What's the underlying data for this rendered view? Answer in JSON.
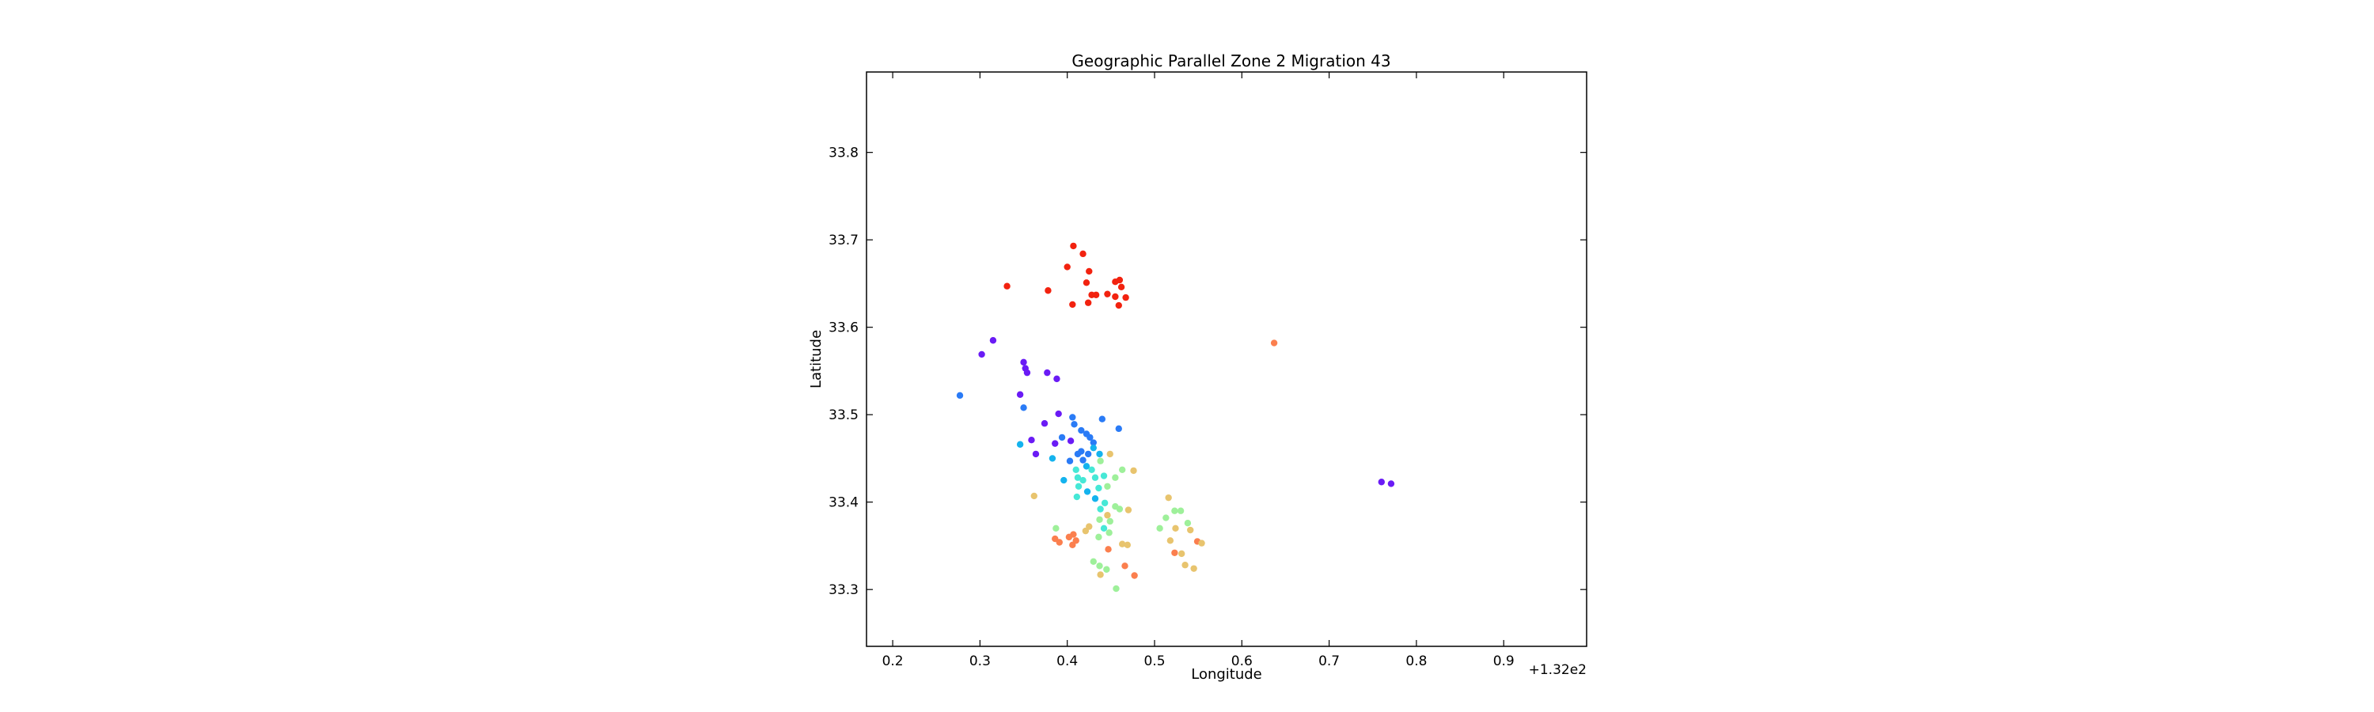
{
  "chart_data": {
    "type": "scatter",
    "title": "Geographic Parallel Zone 2 Migration 43",
    "xlabel": "Longitude",
    "ylabel": "Latitude",
    "x_offset_label": "+1.32e2",
    "xlim": [
      0.17,
      0.995
    ],
    "ylim": [
      33.235,
      33.892
    ],
    "x_ticks": [
      0.2,
      0.3,
      0.4,
      0.5,
      0.6,
      0.7,
      0.8,
      0.9
    ],
    "x_tick_labels": [
      "0.2",
      "0.3",
      "0.4",
      "0.5",
      "0.6",
      "0.7",
      "0.8",
      "0.9"
    ],
    "y_ticks": [
      33.3,
      33.4,
      33.5,
      33.6,
      33.7,
      33.8
    ],
    "y_tick_labels": [
      "33.3",
      "33.4",
      "33.5",
      "33.6",
      "33.7",
      "33.8"
    ],
    "grid": false,
    "legend": "none",
    "color_scale": "rainbow",
    "point_color_scheme": [
      {
        "name": "purple",
        "color": "#6a1bf5"
      },
      {
        "name": "blue",
        "color": "#2a7bf6"
      },
      {
        "name": "sky",
        "color": "#14b3ee"
      },
      {
        "name": "cyan",
        "color": "#46e8d6"
      },
      {
        "name": "green",
        "color": "#9ef09a"
      },
      {
        "name": "yellow",
        "color": "#e8c46e"
      },
      {
        "name": "orange",
        "color": "#fb7f4e"
      },
      {
        "name": "red",
        "color": "#f2220f"
      }
    ],
    "points": [
      {
        "x": 0.407,
        "y": 33.693,
        "c": "red"
      },
      {
        "x": 0.418,
        "y": 33.684,
        "c": "red"
      },
      {
        "x": 0.425,
        "y": 33.664,
        "c": "red"
      },
      {
        "x": 0.4,
        "y": 33.669,
        "c": "red"
      },
      {
        "x": 0.455,
        "y": 33.652,
        "c": "red"
      },
      {
        "x": 0.46,
        "y": 33.654,
        "c": "red"
      },
      {
        "x": 0.462,
        "y": 33.646,
        "c": "red"
      },
      {
        "x": 0.422,
        "y": 33.651,
        "c": "red"
      },
      {
        "x": 0.331,
        "y": 33.647,
        "c": "red"
      },
      {
        "x": 0.378,
        "y": 33.642,
        "c": "red"
      },
      {
        "x": 0.428,
        "y": 33.637,
        "c": "red"
      },
      {
        "x": 0.433,
        "y": 33.637,
        "c": "red"
      },
      {
        "x": 0.446,
        "y": 33.638,
        "c": "red"
      },
      {
        "x": 0.455,
        "y": 33.635,
        "c": "red"
      },
      {
        "x": 0.467,
        "y": 33.634,
        "c": "red"
      },
      {
        "x": 0.406,
        "y": 33.626,
        "c": "red"
      },
      {
        "x": 0.424,
        "y": 33.628,
        "c": "red"
      },
      {
        "x": 0.459,
        "y": 33.625,
        "c": "red"
      },
      {
        "x": 0.637,
        "y": 33.582,
        "c": "orange"
      },
      {
        "x": 0.315,
        "y": 33.585,
        "c": "purple"
      },
      {
        "x": 0.302,
        "y": 33.569,
        "c": "purple"
      },
      {
        "x": 0.35,
        "y": 33.56,
        "c": "purple"
      },
      {
        "x": 0.352,
        "y": 33.553,
        "c": "purple"
      },
      {
        "x": 0.354,
        "y": 33.548,
        "c": "purple"
      },
      {
        "x": 0.377,
        "y": 33.548,
        "c": "purple"
      },
      {
        "x": 0.388,
        "y": 33.541,
        "c": "purple"
      },
      {
        "x": 0.346,
        "y": 33.523,
        "c": "purple"
      },
      {
        "x": 0.277,
        "y": 33.522,
        "c": "blue"
      },
      {
        "x": 0.35,
        "y": 33.508,
        "c": "blue"
      },
      {
        "x": 0.39,
        "y": 33.501,
        "c": "purple"
      },
      {
        "x": 0.406,
        "y": 33.497,
        "c": "blue"
      },
      {
        "x": 0.408,
        "y": 33.489,
        "c": "blue"
      },
      {
        "x": 0.44,
        "y": 33.495,
        "c": "blue"
      },
      {
        "x": 0.374,
        "y": 33.49,
        "c": "purple"
      },
      {
        "x": 0.416,
        "y": 33.482,
        "c": "blue"
      },
      {
        "x": 0.459,
        "y": 33.484,
        "c": "blue"
      },
      {
        "x": 0.422,
        "y": 33.478,
        "c": "blue"
      },
      {
        "x": 0.426,
        "y": 33.474,
        "c": "blue"
      },
      {
        "x": 0.394,
        "y": 33.474,
        "c": "blue"
      },
      {
        "x": 0.404,
        "y": 33.47,
        "c": "purple"
      },
      {
        "x": 0.359,
        "y": 33.471,
        "c": "purple"
      },
      {
        "x": 0.346,
        "y": 33.466,
        "c": "sky"
      },
      {
        "x": 0.386,
        "y": 33.467,
        "c": "purple"
      },
      {
        "x": 0.43,
        "y": 33.468,
        "c": "blue"
      },
      {
        "x": 0.43,
        "y": 33.462,
        "c": "sky"
      },
      {
        "x": 0.416,
        "y": 33.458,
        "c": "blue"
      },
      {
        "x": 0.364,
        "y": 33.455,
        "c": "purple"
      },
      {
        "x": 0.412,
        "y": 33.455,
        "c": "blue"
      },
      {
        "x": 0.424,
        "y": 33.455,
        "c": "blue"
      },
      {
        "x": 0.437,
        "y": 33.455,
        "c": "sky"
      },
      {
        "x": 0.449,
        "y": 33.455,
        "c": "yellow"
      },
      {
        "x": 0.383,
        "y": 33.45,
        "c": "sky"
      },
      {
        "x": 0.403,
        "y": 33.447,
        "c": "blue"
      },
      {
        "x": 0.418,
        "y": 33.448,
        "c": "blue"
      },
      {
        "x": 0.438,
        "y": 33.447,
        "c": "green"
      },
      {
        "x": 0.422,
        "y": 33.441,
        "c": "sky"
      },
      {
        "x": 0.41,
        "y": 33.437,
        "c": "cyan"
      },
      {
        "x": 0.428,
        "y": 33.437,
        "c": "cyan"
      },
      {
        "x": 0.463,
        "y": 33.437,
        "c": "green"
      },
      {
        "x": 0.476,
        "y": 33.436,
        "c": "yellow"
      },
      {
        "x": 0.396,
        "y": 33.425,
        "c": "sky"
      },
      {
        "x": 0.412,
        "y": 33.428,
        "c": "cyan"
      },
      {
        "x": 0.418,
        "y": 33.425,
        "c": "cyan"
      },
      {
        "x": 0.432,
        "y": 33.428,
        "c": "cyan"
      },
      {
        "x": 0.442,
        "y": 33.43,
        "c": "cyan"
      },
      {
        "x": 0.455,
        "y": 33.428,
        "c": "green"
      },
      {
        "x": 0.413,
        "y": 33.418,
        "c": "cyan"
      },
      {
        "x": 0.423,
        "y": 33.412,
        "c": "sky"
      },
      {
        "x": 0.436,
        "y": 33.416,
        "c": "cyan"
      },
      {
        "x": 0.446,
        "y": 33.418,
        "c": "green"
      },
      {
        "x": 0.411,
        "y": 33.406,
        "c": "cyan"
      },
      {
        "x": 0.432,
        "y": 33.404,
        "c": "sky"
      },
      {
        "x": 0.362,
        "y": 33.407,
        "c": "yellow"
      },
      {
        "x": 0.443,
        "y": 33.399,
        "c": "cyan"
      },
      {
        "x": 0.455,
        "y": 33.395,
        "c": "green"
      },
      {
        "x": 0.46,
        "y": 33.392,
        "c": "green"
      },
      {
        "x": 0.47,
        "y": 33.391,
        "c": "yellow"
      },
      {
        "x": 0.438,
        "y": 33.392,
        "c": "cyan"
      },
      {
        "x": 0.446,
        "y": 33.385,
        "c": "yellow"
      },
      {
        "x": 0.437,
        "y": 33.38,
        "c": "green"
      },
      {
        "x": 0.449,
        "y": 33.378,
        "c": "green"
      },
      {
        "x": 0.442,
        "y": 33.37,
        "c": "cyan"
      },
      {
        "x": 0.448,
        "y": 33.365,
        "c": "green"
      },
      {
        "x": 0.387,
        "y": 33.37,
        "c": "green"
      },
      {
        "x": 0.425,
        "y": 33.372,
        "c": "yellow"
      },
      {
        "x": 0.421,
        "y": 33.367,
        "c": "yellow"
      },
      {
        "x": 0.407,
        "y": 33.363,
        "c": "orange"
      },
      {
        "x": 0.402,
        "y": 33.36,
        "c": "orange"
      },
      {
        "x": 0.41,
        "y": 33.356,
        "c": "orange"
      },
      {
        "x": 0.386,
        "y": 33.358,
        "c": "orange"
      },
      {
        "x": 0.391,
        "y": 33.354,
        "c": "orange"
      },
      {
        "x": 0.406,
        "y": 33.351,
        "c": "orange"
      },
      {
        "x": 0.436,
        "y": 33.36,
        "c": "green"
      },
      {
        "x": 0.463,
        "y": 33.352,
        "c": "yellow"
      },
      {
        "x": 0.469,
        "y": 33.351,
        "c": "yellow"
      },
      {
        "x": 0.447,
        "y": 33.346,
        "c": "orange"
      },
      {
        "x": 0.516,
        "y": 33.405,
        "c": "yellow"
      },
      {
        "x": 0.523,
        "y": 33.39,
        "c": "green"
      },
      {
        "x": 0.53,
        "y": 33.39,
        "c": "green"
      },
      {
        "x": 0.513,
        "y": 33.382,
        "c": "green"
      },
      {
        "x": 0.538,
        "y": 33.376,
        "c": "green"
      },
      {
        "x": 0.506,
        "y": 33.37,
        "c": "green"
      },
      {
        "x": 0.524,
        "y": 33.37,
        "c": "yellow"
      },
      {
        "x": 0.541,
        "y": 33.368,
        "c": "yellow"
      },
      {
        "x": 0.518,
        "y": 33.356,
        "c": "yellow"
      },
      {
        "x": 0.549,
        "y": 33.355,
        "c": "orange"
      },
      {
        "x": 0.554,
        "y": 33.353,
        "c": "yellow"
      },
      {
        "x": 0.523,
        "y": 33.342,
        "c": "orange"
      },
      {
        "x": 0.531,
        "y": 33.341,
        "c": "yellow"
      },
      {
        "x": 0.535,
        "y": 33.328,
        "c": "yellow"
      },
      {
        "x": 0.545,
        "y": 33.324,
        "c": "yellow"
      },
      {
        "x": 0.43,
        "y": 33.332,
        "c": "green"
      },
      {
        "x": 0.437,
        "y": 33.327,
        "c": "green"
      },
      {
        "x": 0.445,
        "y": 33.323,
        "c": "green"
      },
      {
        "x": 0.438,
        "y": 33.317,
        "c": "yellow"
      },
      {
        "x": 0.466,
        "y": 33.327,
        "c": "orange"
      },
      {
        "x": 0.477,
        "y": 33.316,
        "c": "orange"
      },
      {
        "x": 0.456,
        "y": 33.301,
        "c": "green"
      },
      {
        "x": 0.76,
        "y": 33.423,
        "c": "purple"
      },
      {
        "x": 0.771,
        "y": 33.421,
        "c": "purple"
      }
    ]
  }
}
